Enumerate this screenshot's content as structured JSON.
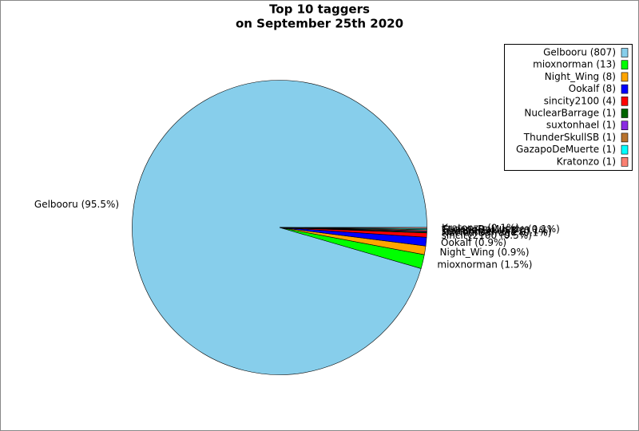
{
  "chart_data": {
    "type": "pie",
    "title": "Top 10 taggers",
    "subtitle": "on September 25th 2020",
    "categories": [
      "Gelbooru",
      "mioxnorman",
      "Night_Wing",
      "Ookalf",
      "sincity2100",
      "NuclearBarrage",
      "suxtonhael",
      "ThunderSkullSB",
      "GazapoDeMuerte",
      "Kratonzo"
    ],
    "values": [
      807,
      13,
      8,
      8,
      4,
      1,
      1,
      1,
      1,
      1
    ],
    "legend_labels": [
      "Gelbooru (807)",
      "mioxnorman (13)",
      "Night_Wing (8)",
      "Ookalf (8)",
      "sincity2100 (4)",
      "NuclearBarrage (1)",
      "suxtonhael (1)",
      "ThunderSkullSB (1)",
      "GazapoDeMuerte (1)",
      "Kratonzo (1)"
    ],
    "value_labels": [
      "Gelbooru (95.5%)",
      "mioxnorman (1.5%)",
      "Night_Wing (0.9%)",
      "Ookalf (0.9%)",
      "sincity2100 (0.5%)",
      "NuclearBarrage (0.1%)",
      "suxtonhael (0.1%)",
      "ThunderSkullSB (0.1%)",
      "GazapoDeMuerte (0.1%)",
      "Kratonzo (0.1%)"
    ],
    "colors": [
      "#87ceeb",
      "#00ff00",
      "#ffa500",
      "#0000ff",
      "#ff0000",
      "#006400",
      "#8a2be2",
      "#b8732e",
      "#00ffff",
      "#fa8072"
    ],
    "legend": "upper right"
  }
}
